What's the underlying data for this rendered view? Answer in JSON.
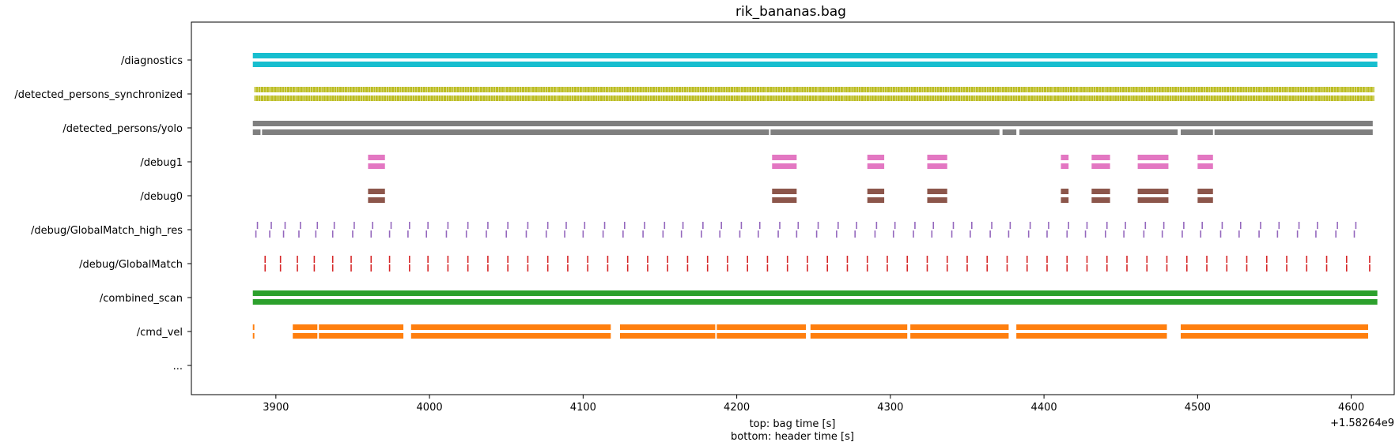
{
  "chart_data": {
    "type": "event-timeline",
    "title": "rik_bananas.bag",
    "xlabel_lines": [
      "top: bag time [s]",
      "bottom: header time [s]"
    ],
    "x_offset_label": "+1.58264e9",
    "xlim": [
      3845,
      4628
    ],
    "x_ticks": [
      3900,
      4000,
      4100,
      4200,
      4300,
      4400,
      4500,
      4600
    ],
    "x_tick_labels": [
      "3900",
      "4000",
      "4100",
      "4200",
      "4300",
      "4400",
      "4500",
      "4600"
    ],
    "grid": false,
    "legend": "none",
    "topics": [
      "/diagnostics",
      "/detected_persons_synchronized",
      "/detected_persons/yolo",
      "/debug1",
      "/debug0",
      "/debug/GlobalMatch_high_res",
      "/debug/GlobalMatch",
      "/combined_scan",
      "/cmd_vel",
      "..."
    ],
    "series": [
      {
        "topic": "/diagnostics",
        "color": "#17becf",
        "style": "continuous",
        "top": [
          [
            3885,
            4617
          ]
        ],
        "bottom": [
          [
            3885,
            4617
          ]
        ]
      },
      {
        "topic": "/detected_persons_synchronized",
        "color": "#bcbd22",
        "style": "dense-ticks",
        "top": [
          [
            3886,
            4615
          ]
        ],
        "bottom": [
          [
            3886,
            4615
          ]
        ]
      },
      {
        "topic": "/detected_persons/yolo",
        "color": "#7f7f7f",
        "style": "continuous",
        "top": [
          [
            3885,
            4614
          ]
        ],
        "bottom": [
          [
            3885,
            3890
          ],
          [
            3891,
            4221
          ],
          [
            4222,
            4371
          ],
          [
            4373,
            4382
          ],
          [
            4384,
            4487
          ],
          [
            4489,
            4510
          ],
          [
            4511,
            4614
          ]
        ]
      },
      {
        "topic": "/debug1",
        "color": "#e377c2",
        "style": "continuous",
        "top": [
          [
            3960,
            3971
          ],
          [
            4223,
            4239
          ],
          [
            4285,
            4296
          ],
          [
            4324,
            4337
          ],
          [
            4411,
            4416
          ],
          [
            4431,
            4443
          ],
          [
            4461,
            4481
          ],
          [
            4500,
            4510
          ]
        ],
        "bottom": [
          [
            3960,
            3971
          ],
          [
            4223,
            4239
          ],
          [
            4285,
            4296
          ],
          [
            4324,
            4337
          ],
          [
            4411,
            4416
          ],
          [
            4431,
            4443
          ],
          [
            4461,
            4481
          ],
          [
            4500,
            4510
          ]
        ]
      },
      {
        "topic": "/debug0",
        "color": "#8c564b",
        "style": "continuous",
        "top": [
          [
            3960,
            3971
          ],
          [
            4223,
            4239
          ],
          [
            4285,
            4296
          ],
          [
            4324,
            4337
          ],
          [
            4411,
            4416
          ],
          [
            4431,
            4443
          ],
          [
            4461,
            4481
          ],
          [
            4500,
            4510
          ]
        ],
        "bottom": [
          [
            3960,
            3971
          ],
          [
            4223,
            4239
          ],
          [
            4285,
            4296
          ],
          [
            4324,
            4337
          ],
          [
            4411,
            4416
          ],
          [
            4431,
            4443
          ],
          [
            4461,
            4481
          ],
          [
            4500,
            4510
          ]
        ]
      },
      {
        "topic": "/debug/GlobalMatch_high_res",
        "color": "#9467bd",
        "style": "sparse-ticks",
        "top_times": [
          3888,
          3897,
          3906,
          3916,
          3927,
          3938,
          3951,
          3963,
          3975,
          3987,
          3999,
          4012,
          4025,
          4038,
          4051,
          4064,
          4077,
          4089,
          4101,
          4114,
          4127,
          4140,
          4153,
          4165,
          4178,
          4190,
          4203,
          4215,
          4228,
          4240,
          4253,
          4266,
          4278,
          4291,
          4303,
          4316,
          4328,
          4341,
          4353,
          4366,
          4378,
          4391,
          4403,
          4416,
          4428,
          4441,
          4453,
          4466,
          4478,
          4491,
          4503,
          4516,
          4528,
          4541,
          4553,
          4566,
          4578,
          4591,
          4603
        ],
        "bottom_times": [
          3887,
          3896,
          3905,
          3915,
          3926,
          3937,
          3950,
          3962,
          3974,
          3986,
          3998,
          4011,
          4024,
          4037,
          4050,
          4063,
          4076,
          4088,
          4100,
          4113,
          4126,
          4139,
          4152,
          4164,
          4177,
          4189,
          4202,
          4214,
          4227,
          4239,
          4252,
          4265,
          4277,
          4290,
          4302,
          4315,
          4327,
          4340,
          4352,
          4365,
          4377,
          4390,
          4402,
          4415,
          4427,
          4440,
          4452,
          4465,
          4477,
          4490,
          4502,
          4515,
          4527,
          4540,
          4552,
          4565,
          4577,
          4590,
          4602
        ]
      },
      {
        "topic": "/debug/GlobalMatch",
        "color": "#d62728",
        "style": "sparse-ticks",
        "top_times": [
          3893,
          3903,
          3914,
          3925,
          3937,
          3949,
          3962,
          3974,
          3987,
          3999,
          4012,
          4025,
          4038,
          4051,
          4064,
          4077,
          4090,
          4103,
          4116,
          4129,
          4142,
          4155,
          4168,
          4181,
          4194,
          4207,
          4220,
          4233,
          4246,
          4259,
          4272,
          4285,
          4298,
          4311,
          4324,
          4337,
          4350,
          4363,
          4376,
          4389,
          4402,
          4415,
          4428,
          4441,
          4454,
          4467,
          4480,
          4493,
          4506,
          4519,
          4532,
          4545,
          4558,
          4571,
          4584,
          4597,
          4612
        ],
        "bottom_times": [
          3893,
          3903,
          3914,
          3925,
          3937,
          3949,
          3962,
          3974,
          3987,
          3999,
          4012,
          4025,
          4038,
          4051,
          4064,
          4077,
          4090,
          4103,
          4116,
          4129,
          4142,
          4155,
          4168,
          4181,
          4194,
          4207,
          4220,
          4233,
          4246,
          4259,
          4272,
          4285,
          4298,
          4311,
          4324,
          4337,
          4350,
          4363,
          4376,
          4389,
          4402,
          4415,
          4428,
          4441,
          4454,
          4467,
          4480,
          4493,
          4506,
          4519,
          4532,
          4545,
          4558,
          4571,
          4584,
          4597,
          4612
        ]
      },
      {
        "topic": "/combined_scan",
        "color": "#2ca02c",
        "style": "continuous",
        "top": [
          [
            3885,
            4617
          ]
        ],
        "bottom": [
          [
            3885,
            4617
          ]
        ]
      },
      {
        "topic": "/cmd_vel",
        "color": "#ff7f0e",
        "style": "continuous",
        "top": [
          [
            3885,
            3886
          ],
          [
            3911,
            3927
          ],
          [
            3928,
            3983
          ],
          [
            3988,
            4118
          ],
          [
            4124,
            4186
          ],
          [
            4187,
            4245
          ],
          [
            4248,
            4311
          ],
          [
            4313,
            4377
          ],
          [
            4382,
            4480
          ],
          [
            4489,
            4611
          ]
        ],
        "bottom": [
          [
            3885,
            3886
          ],
          [
            3911,
            3927
          ],
          [
            3928,
            3983
          ],
          [
            3988,
            4118
          ],
          [
            4124,
            4186
          ],
          [
            4187,
            4245
          ],
          [
            4248,
            4311
          ],
          [
            4313,
            4377
          ],
          [
            4382,
            4480
          ],
          [
            4489,
            4611
          ]
        ]
      }
    ]
  }
}
